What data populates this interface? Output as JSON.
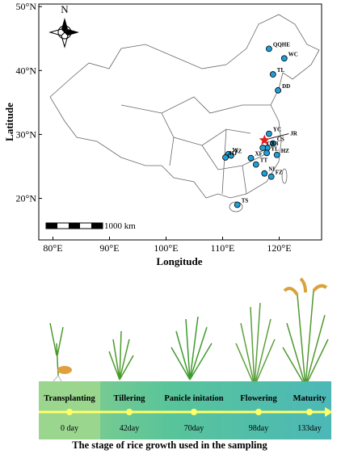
{
  "map": {
    "xlabel": "Longitude",
    "ylabel": "Latitude",
    "xlim": [
      77.5,
      127.5
    ],
    "ylim": [
      13.5,
      50.4
    ],
    "xticks": [
      {
        "value": 80,
        "label": "80°E"
      },
      {
        "value": 90,
        "label": "90°E"
      },
      {
        "value": 100,
        "label": "100°E"
      },
      {
        "value": 110,
        "label": "110°E"
      },
      {
        "value": 120,
        "label": "120°E"
      }
    ],
    "yticks": [
      {
        "value": 20,
        "label": "20°N"
      },
      {
        "value": 30,
        "label": "30°N"
      },
      {
        "value": 40,
        "label": "40°N"
      },
      {
        "value": 50,
        "label": "50°N"
      }
    ],
    "north": "N",
    "scale_label": "1000 km",
    "star": {
      "label": "JR",
      "lon": 117.4,
      "lat": 29.1
    },
    "stations": [
      {
        "label": "QQHE",
        "lon": 118.2,
        "lat": 43.4
      },
      {
        "label": "WC",
        "lon": 120.9,
        "lat": 41.9
      },
      {
        "label": "TL",
        "lon": 118.9,
        "lat": 39.4
      },
      {
        "label": "DD",
        "lon": 119.8,
        "lat": 36.9
      },
      {
        "label": "YC",
        "lon": 118.2,
        "lat": 30.1
      },
      {
        "label": "CS",
        "lon": 118.9,
        "lat": 28.6
      },
      {
        "label": "SB",
        "lon": 117.9,
        "lat": 27.9
      },
      {
        "label": "CZ",
        "lon": 117.1,
        "lat": 27.9
      },
      {
        "label": "YL",
        "lon": 117.8,
        "lat": 27.1
      },
      {
        "label": "HZ",
        "lon": 119.6,
        "lat": 26.8
      },
      {
        "label": "W",
        "lon": 111.0,
        "lat": 26.9
      },
      {
        "label": "JZ",
        "lon": 111.5,
        "lat": 26.7
      },
      {
        "label": "HJ",
        "lon": 110.5,
        "lat": 26.4
      },
      {
        "label": "XF",
        "lon": 115.0,
        "lat": 26.3
      },
      {
        "label": "TT",
        "lon": 115.9,
        "lat": 25.3
      },
      {
        "label": "NI",
        "lon": 117.4,
        "lat": 23.9
      },
      {
        "label": "FZ",
        "lon": 118.6,
        "lat": 23.4
      },
      {
        "label": "TS",
        "lon": 112.6,
        "lat": 19.0
      }
    ]
  },
  "growth": {
    "caption": "The stage of rice growth used in the sampling",
    "stages": [
      {
        "name": "Transplanting",
        "day": "0 day"
      },
      {
        "name": "Tillering",
        "day": "42day"
      },
      {
        "name": "Panicle initation",
        "day": "70day"
      },
      {
        "name": "Flowering",
        "day": "98day"
      },
      {
        "name": "Maturity",
        "day": "133day"
      }
    ]
  }
}
